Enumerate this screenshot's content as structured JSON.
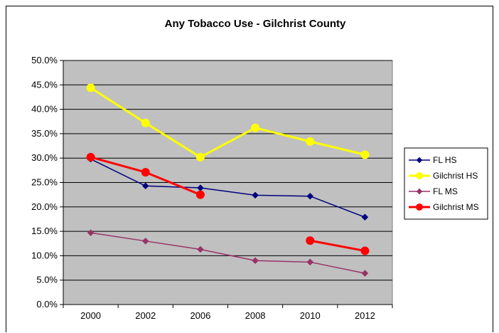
{
  "chart_data": {
    "type": "line",
    "title": "Any Tobacco Use - Gilchrist County",
    "xlabel": "",
    "ylabel": "",
    "categories": [
      "2000",
      "2002",
      "2006",
      "2008",
      "2010",
      "2012"
    ],
    "ylim": [
      0,
      0.5
    ],
    "yticks": [
      "0.0%",
      "5.0%",
      "10.0%",
      "15.0%",
      "20.0%",
      "25.0%",
      "30.0%",
      "35.0%",
      "40.0%",
      "45.0%",
      "50.0%"
    ],
    "grid": true,
    "plot_background": "#c0c0c0",
    "legend_position": "right",
    "series": [
      {
        "name": "FL HS",
        "values": [
          0.298,
          0.243,
          0.239,
          0.224,
          0.222,
          0.179
        ],
        "color": "#000080",
        "marker": "diamond",
        "width": 1.5
      },
      {
        "name": "Gilchrist HS",
        "values": [
          0.444,
          0.372,
          0.302,
          0.362,
          0.334,
          0.307
        ],
        "color": "#ffff00",
        "marker": "circle",
        "width": 3
      },
      {
        "name": "FL MS",
        "values": [
          0.147,
          0.13,
          0.113,
          0.09,
          0.087,
          0.064
        ],
        "color": "#993366",
        "marker": "diamond",
        "width": 1.5
      },
      {
        "name": "Gilchrist MS",
        "values": [
          0.302,
          0.271,
          0.225,
          null,
          0.131,
          0.11
        ],
        "color": "#ff0000",
        "marker": "circle",
        "width": 3
      }
    ]
  }
}
